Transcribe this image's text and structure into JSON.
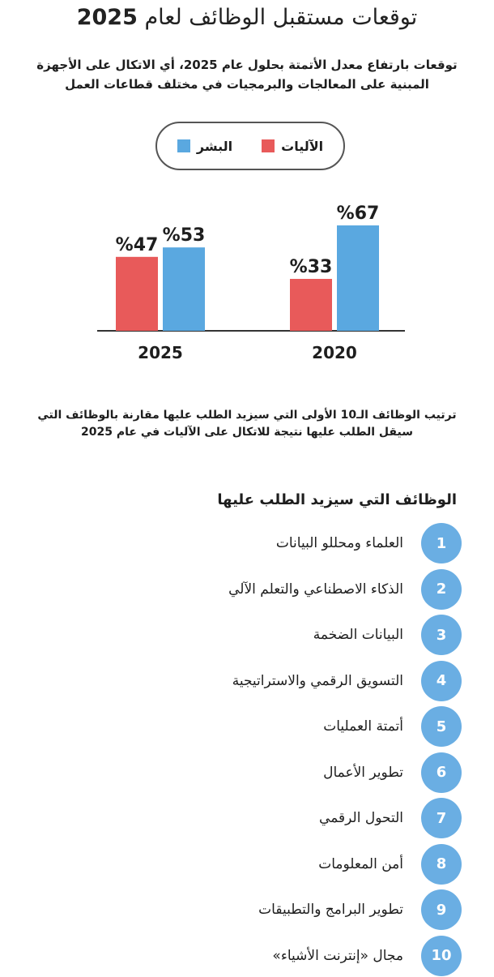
{
  "header": {
    "title_text": "توقعات مستقبل الوظائف لعام",
    "title_year": "2025",
    "subtitle": "توقعات بارتفاع معدل الأتمتة بحلول عام 2025، أي الاتكال على الأجهزة المبنية على المعالجات والبرمجيات في مختلف قطاعات العمل"
  },
  "legend": [
    {
      "label": "البشر",
      "color": "#5aa8e0"
    },
    {
      "label": "الآليات",
      "color": "#e85a5a"
    }
  ],
  "chart_data": {
    "type": "bar",
    "title": "",
    "categories": [
      "2025",
      "2020"
    ],
    "series": [
      {
        "name": "الآليات",
        "color": "#e85a5a",
        "values": [
          47,
          33
        ],
        "labels": [
          "%47",
          "%33"
        ]
      },
      {
        "name": "البشر",
        "color": "#5aa8e0",
        "values": [
          53,
          67
        ],
        "labels": [
          "%53",
          "%67"
        ]
      }
    ],
    "ylim": [
      0,
      75
    ],
    "xlabel": "",
    "ylabel": ""
  },
  "ranking": {
    "intro": "ترتيب الوظائف الـ10 الأولى التي سيزيد الطلب عليها مقارنة بالوظائف التي سيقل الطلب عليها نتيجة للاتكال على الآليات في عام 2025",
    "heading": "الوظائف التي سيزيد الطلب عليها",
    "items": [
      {
        "num": "1",
        "label": "العلماء ومحللو البيانات"
      },
      {
        "num": "2",
        "label": "الذكاء الاصطناعي والتعلم الآلي"
      },
      {
        "num": "3",
        "label": "البيانات الضخمة"
      },
      {
        "num": "4",
        "label": "التسويق الرقمي والاستراتيجية"
      },
      {
        "num": "5",
        "label": "أتمتة العمليات"
      },
      {
        "num": "6",
        "label": "تطوير الأعمال"
      },
      {
        "num": "7",
        "label": "التحول الرقمي"
      },
      {
        "num": "8",
        "label": "أمن المعلومات"
      },
      {
        "num": "9",
        "label": "تطوير البرامج والتطبيقات"
      },
      {
        "num": "10",
        "label": "مجال «إنترنت الأشياء»"
      }
    ]
  }
}
